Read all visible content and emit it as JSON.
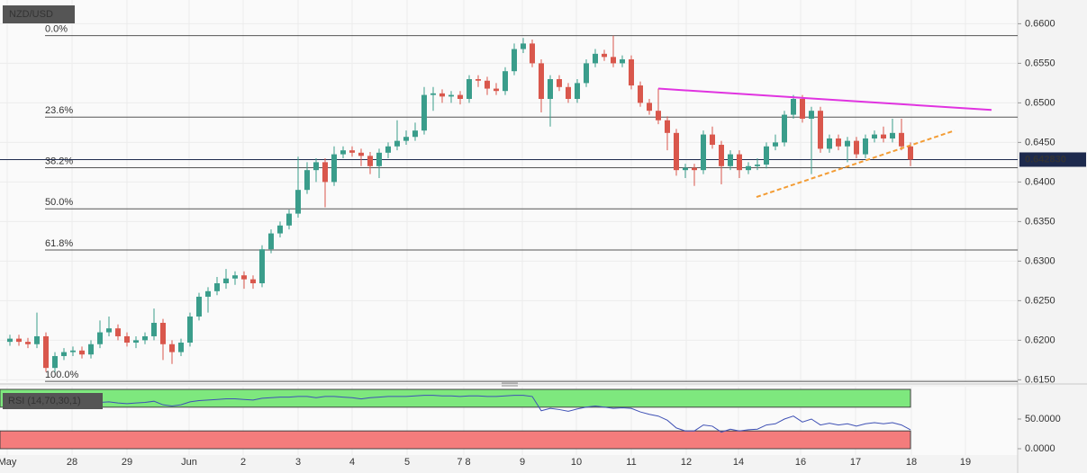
{
  "chart_data": {
    "type": "candlestick",
    "title": "NZD/USD",
    "up_color": "#3a9d8b",
    "down_color": "#d9574c",
    "xlim": [
      -1.1,
      111.9
    ],
    "ylim": [
      0.6147,
      0.663
    ],
    "xticks": [
      {
        "value": -0.3,
        "label": "May"
      },
      {
        "value": 6.9,
        "label": "28"
      },
      {
        "value": 13,
        "label": "29"
      },
      {
        "value": 19.9,
        "label": "Jun"
      },
      {
        "value": 25.9,
        "label": "2"
      },
      {
        "value": 32,
        "label": "3"
      },
      {
        "value": 38,
        "label": "4"
      },
      {
        "value": 44.1,
        "label": "5"
      },
      {
        "value": 50.4,
        "label": "7 8"
      },
      {
        "value": 56.9,
        "label": "9"
      },
      {
        "value": 62.9,
        "label": "10"
      },
      {
        "value": 69,
        "label": "11"
      },
      {
        "value": 75.1,
        "label": "12"
      },
      {
        "value": 80.9,
        "label": "14"
      },
      {
        "value": 87.8,
        "label": "16"
      },
      {
        "value": 93.9,
        "label": "17"
      },
      {
        "value": 100.1,
        "label": "18"
      },
      {
        "value": 106.1,
        "label": "19"
      }
    ],
    "yticks": [
      {
        "value": 0.66,
        "label": "0.6600"
      },
      {
        "value": 0.655,
        "label": "0.6550"
      },
      {
        "value": 0.65,
        "label": "0.6500"
      },
      {
        "value": 0.645,
        "label": "0.6450"
      },
      {
        "value": 0.64,
        "label": "0.6400"
      },
      {
        "value": 0.635,
        "label": "0.6350"
      },
      {
        "value": 0.63,
        "label": "0.6300"
      },
      {
        "value": 0.625,
        "label": "0.6250"
      },
      {
        "value": 0.62,
        "label": "0.6200"
      },
      {
        "value": 0.615,
        "label": "0.6150"
      }
    ],
    "fib_levels": [
      {
        "label": "0.0%",
        "value": 0.6585
      },
      {
        "label": "23.6%",
        "value": 0.6482
      },
      {
        "label": "38.2%",
        "value": 0.6418
      },
      {
        "label": "50.0%",
        "value": 0.6366
      },
      {
        "label": "61.8%",
        "value": 0.6314
      },
      {
        "label": "100.0%",
        "value": 0.6148
      }
    ],
    "last_price": {
      "value": 0.64283,
      "label": "0.642830"
    },
    "trendlines": [
      {
        "color": "#e033e0",
        "dashed": false,
        "points": [
          [
            72,
            0.6518
          ],
          [
            109,
            0.6491
          ]
        ]
      },
      {
        "color": "#f39c34",
        "dashed": true,
        "points": [
          [
            82.9,
            0.6381
          ],
          [
            104.9,
            0.6465
          ]
        ]
      }
    ],
    "candles": [
      [
        0.6198,
        0.6207,
        0.6193,
        0.6202
      ],
      [
        0.6202,
        0.6207,
        0.6193,
        0.6198
      ],
      [
        0.6198,
        0.6203,
        0.619,
        0.6195
      ],
      [
        0.6195,
        0.6235,
        0.619,
        0.6205
      ],
      [
        0.6205,
        0.621,
        0.616,
        0.6165
      ],
      [
        0.6165,
        0.6185,
        0.616,
        0.618
      ],
      [
        0.618,
        0.619,
        0.6175,
        0.6185
      ],
      [
        0.6185,
        0.6192,
        0.618,
        0.6187
      ],
      [
        0.6187,
        0.6192,
        0.6177,
        0.6182
      ],
      [
        0.6182,
        0.62,
        0.6177,
        0.6195
      ],
      [
        0.6195,
        0.6225,
        0.619,
        0.621
      ],
      [
        0.621,
        0.623,
        0.6205,
        0.6215
      ],
      [
        0.6215,
        0.622,
        0.62,
        0.6205
      ],
      [
        0.6205,
        0.621,
        0.6192,
        0.6197
      ],
      [
        0.6197,
        0.6205,
        0.619,
        0.62
      ],
      [
        0.62,
        0.621,
        0.6195,
        0.6205
      ],
      [
        0.6205,
        0.624,
        0.62,
        0.6222
      ],
      [
        0.6222,
        0.6227,
        0.6175,
        0.6195
      ],
      [
        0.6195,
        0.62,
        0.617,
        0.6185
      ],
      [
        0.6185,
        0.6202,
        0.618,
        0.6197
      ],
      [
        0.6197,
        0.6235,
        0.6192,
        0.623
      ],
      [
        0.623,
        0.626,
        0.6225,
        0.6255
      ],
      [
        0.6255,
        0.6267,
        0.6235,
        0.6262
      ],
      [
        0.6262,
        0.628,
        0.6257,
        0.6272
      ],
      [
        0.6272,
        0.629,
        0.6265,
        0.6278
      ],
      [
        0.6278,
        0.6287,
        0.627,
        0.6282
      ],
      [
        0.6282,
        0.6287,
        0.6265,
        0.6277
      ],
      [
        0.6277,
        0.6282,
        0.6265,
        0.6272
      ],
      [
        0.6272,
        0.632,
        0.6267,
        0.6315
      ],
      [
        0.6315,
        0.634,
        0.631,
        0.6335
      ],
      [
        0.6335,
        0.635,
        0.633,
        0.6345
      ],
      [
        0.6345,
        0.6365,
        0.634,
        0.636
      ],
      [
        0.636,
        0.6432,
        0.6355,
        0.639
      ],
      [
        0.639,
        0.6425,
        0.6385,
        0.6415
      ],
      [
        0.6415,
        0.643,
        0.64,
        0.6425
      ],
      [
        0.6425,
        0.643,
        0.6368,
        0.64
      ],
      [
        0.64,
        0.6445,
        0.6395,
        0.6435
      ],
      [
        0.6435,
        0.6445,
        0.643,
        0.644
      ],
      [
        0.644,
        0.6445,
        0.6432,
        0.6437
      ],
      [
        0.6437,
        0.6442,
        0.642,
        0.6433
      ],
      [
        0.6433,
        0.6438,
        0.641,
        0.642
      ],
      [
        0.642,
        0.6442,
        0.6405,
        0.6437
      ],
      [
        0.6437,
        0.645,
        0.643,
        0.6445
      ],
      [
        0.6445,
        0.6478,
        0.644,
        0.6452
      ],
      [
        0.6452,
        0.6465,
        0.6447,
        0.6457
      ],
      [
        0.6457,
        0.6475,
        0.6452,
        0.6465
      ],
      [
        0.6465,
        0.652,
        0.646,
        0.651
      ],
      [
        0.651,
        0.652,
        0.649,
        0.6512
      ],
      [
        0.6512,
        0.6517,
        0.65,
        0.6508
      ],
      [
        0.6508,
        0.6515,
        0.65,
        0.651
      ],
      [
        0.651,
        0.6515,
        0.6498,
        0.6505
      ],
      [
        0.6505,
        0.6535,
        0.65,
        0.653
      ],
      [
        0.653,
        0.6535,
        0.652,
        0.6528
      ],
      [
        0.6528,
        0.6533,
        0.651,
        0.6518
      ],
      [
        0.6518,
        0.6525,
        0.651,
        0.6515
      ],
      [
        0.6515,
        0.6545,
        0.651,
        0.654
      ],
      [
        0.654,
        0.6575,
        0.6535,
        0.6568
      ],
      [
        0.6568,
        0.6582,
        0.6563,
        0.6575
      ],
      [
        0.6575,
        0.658,
        0.6545,
        0.655
      ],
      [
        0.655,
        0.6555,
        0.6488,
        0.6505
      ],
      [
        0.6505,
        0.6535,
        0.647,
        0.653
      ],
      [
        0.653,
        0.6535,
        0.6515,
        0.652
      ],
      [
        0.652,
        0.6525,
        0.65,
        0.6505
      ],
      [
        0.6505,
        0.653,
        0.65,
        0.6525
      ],
      [
        0.6525,
        0.6555,
        0.652,
        0.655
      ],
      [
        0.655,
        0.6568,
        0.6545,
        0.6562
      ],
      [
        0.6562,
        0.6567,
        0.6553,
        0.6558
      ],
      [
        0.6558,
        0.6585,
        0.6545,
        0.655
      ],
      [
        0.655,
        0.656,
        0.6545,
        0.6555
      ],
      [
        0.6555,
        0.656,
        0.6517,
        0.6522
      ],
      [
        0.6522,
        0.6527,
        0.6495,
        0.65
      ],
      [
        0.65,
        0.6505,
        0.6485,
        0.649
      ],
      [
        0.649,
        0.6518,
        0.6473,
        0.6478
      ],
      [
        0.6478,
        0.6483,
        0.644,
        0.6462
      ],
      [
        0.6462,
        0.6467,
        0.6408,
        0.6415
      ],
      [
        0.6415,
        0.6423,
        0.6405,
        0.6418
      ],
      [
        0.6418,
        0.6423,
        0.6395,
        0.6415
      ],
      [
        0.6415,
        0.6465,
        0.641,
        0.646
      ],
      [
        0.646,
        0.647,
        0.6442,
        0.6447
      ],
      [
        0.6447,
        0.6452,
        0.6397,
        0.642
      ],
      [
        0.642,
        0.644,
        0.6415,
        0.6435
      ],
      [
        0.6435,
        0.644,
        0.6405,
        0.6415
      ],
      [
        0.6415,
        0.6425,
        0.641,
        0.642
      ],
      [
        0.642,
        0.643,
        0.6415,
        0.6422
      ],
      [
        0.6422,
        0.645,
        0.6417,
        0.6445
      ],
      [
        0.6445,
        0.646,
        0.644,
        0.645
      ],
      [
        0.645,
        0.649,
        0.6445,
        0.6485
      ],
      [
        0.6485,
        0.651,
        0.648,
        0.6505
      ],
      [
        0.6505,
        0.651,
        0.6475,
        0.648
      ],
      [
        0.648,
        0.6495,
        0.641,
        0.649
      ],
      [
        0.649,
        0.6495,
        0.6437,
        0.6442
      ],
      [
        0.6442,
        0.646,
        0.6437,
        0.6455
      ],
      [
        0.6455,
        0.646,
        0.644,
        0.6445
      ],
      [
        0.6445,
        0.6457,
        0.6425,
        0.6452
      ],
      [
        0.6452,
        0.6457,
        0.643,
        0.6435
      ],
      [
        0.6435,
        0.646,
        0.643,
        0.6455
      ],
      [
        0.6455,
        0.6465,
        0.645,
        0.646
      ],
      [
        0.646,
        0.647,
        0.645,
        0.6455
      ],
      [
        0.6455,
        0.648,
        0.645,
        0.6462
      ],
      [
        0.6462,
        0.648,
        0.644,
        0.6445
      ],
      [
        0.6445,
        0.645,
        0.642,
        0.64283
      ]
    ],
    "rsi": {
      "label": "RSI (14,70,30,1)",
      "color": "#3f51b5",
      "ylim": [
        0,
        100
      ],
      "overbought": 70,
      "oversold": 30,
      "yticks": [
        {
          "value": 50,
          "label": "50.0000"
        },
        {
          "value": 0,
          "label": "0.0000"
        }
      ],
      "values": [
        76,
        75,
        74,
        75,
        70,
        72,
        73,
        74,
        73,
        75,
        78,
        79,
        77,
        76,
        77,
        78,
        80,
        74,
        72,
        74,
        79,
        81,
        82,
        83,
        84,
        84,
        83,
        82,
        85,
        86,
        87,
        87,
        88,
        88,
        86,
        88,
        88,
        87,
        86,
        84,
        86,
        87,
        88,
        88,
        88,
        89,
        90,
        90,
        89,
        89,
        88,
        89,
        89,
        88,
        88,
        89,
        90,
        90,
        88,
        64,
        68,
        66,
        63,
        67,
        70,
        72,
        70,
        68,
        69,
        68,
        62,
        58,
        55,
        48,
        35,
        30,
        30,
        40,
        38,
        28,
        33,
        30,
        32,
        33,
        40,
        42,
        50,
        55,
        45,
        50,
        40,
        43,
        40,
        42,
        38,
        42,
        44,
        42,
        44,
        40,
        32
      ]
    }
  }
}
